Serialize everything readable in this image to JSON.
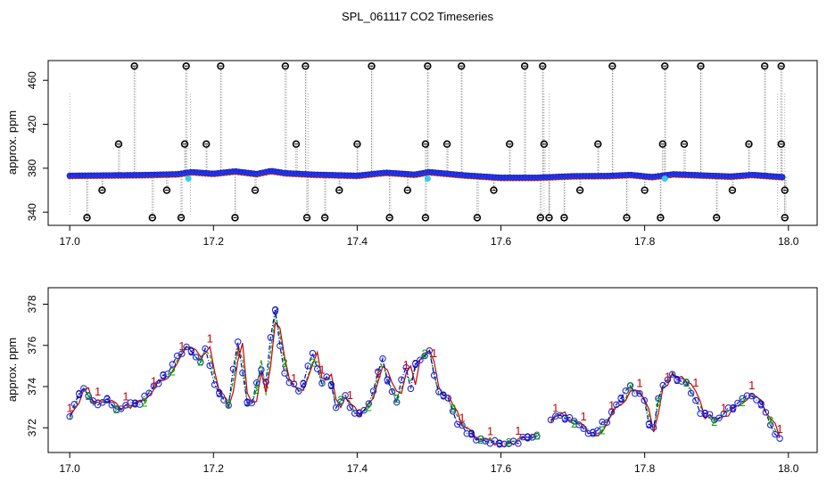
{
  "title": "SPL_061117  CO2 Timeseries",
  "chart_data": [
    {
      "type": "scatter",
      "ylabel": "approx. ppm",
      "xlabel": "",
      "xlim": [
        16.97,
        18.04
      ],
      "ylim": [
        328,
        478
      ],
      "xticks": [
        "17.0",
        "17.2",
        "17.4",
        "17.6",
        "17.8",
        "18.0"
      ],
      "yticks": [
        "340",
        "380",
        "420",
        "460"
      ],
      "baseline_points": [
        [
          17.0,
          373.2
        ],
        [
          17.05,
          373.5
        ],
        [
          17.1,
          373.8
        ],
        [
          17.15,
          374.6
        ],
        [
          17.17,
          376.5
        ],
        [
          17.2,
          375.0
        ],
        [
          17.23,
          377.2
        ],
        [
          17.26,
          374.8
        ],
        [
          17.28,
          377.5
        ],
        [
          17.3,
          375.5
        ],
        [
          17.34,
          374.2
        ],
        [
          17.4,
          373.2
        ],
        [
          17.44,
          376.0
        ],
        [
          17.48,
          374.2
        ],
        [
          17.5,
          376.5
        ],
        [
          17.55,
          373.5
        ],
        [
          17.6,
          371.4
        ],
        [
          17.65,
          371.4
        ],
        [
          17.7,
          372.8
        ],
        [
          17.75,
          373.0
        ],
        [
          17.78,
          374.0
        ],
        [
          17.81,
          372.0
        ],
        [
          17.84,
          374.5
        ],
        [
          17.88,
          373.5
        ],
        [
          17.92,
          372.5
        ],
        [
          17.95,
          374.0
        ],
        [
          17.99,
          372.0
        ]
      ],
      "outliers": [
        [
          17.024,
          335
        ],
        [
          17.045,
          360
        ],
        [
          17.068,
          402
        ],
        [
          17.09,
          473
        ],
        [
          17.115,
          335
        ],
        [
          17.135,
          360
        ],
        [
          17.155,
          335
        ],
        [
          17.16,
          402
        ],
        [
          17.162,
          473
        ],
        [
          17.19,
          402
        ],
        [
          17.21,
          473
        ],
        [
          17.23,
          335
        ],
        [
          17.258,
          360
        ],
        [
          17.3,
          473
        ],
        [
          17.315,
          402
        ],
        [
          17.328,
          473
        ],
        [
          17.33,
          335
        ],
        [
          17.355,
          335
        ],
        [
          17.375,
          360
        ],
        [
          17.4,
          402
        ],
        [
          17.42,
          473
        ],
        [
          17.445,
          335
        ],
        [
          17.47,
          360
        ],
        [
          17.495,
          335
        ],
        [
          17.495,
          402
        ],
        [
          17.498,
          473
        ],
        [
          17.525,
          402
        ],
        [
          17.545,
          473
        ],
        [
          17.567,
          335
        ],
        [
          17.59,
          360
        ],
        [
          17.612,
          402
        ],
        [
          17.633,
          473
        ],
        [
          17.655,
          335
        ],
        [
          17.658,
          473
        ],
        [
          17.66,
          402
        ],
        [
          17.667,
          335
        ],
        [
          17.688,
          335
        ],
        [
          17.71,
          360
        ],
        [
          17.735,
          402
        ],
        [
          17.755,
          473
        ],
        [
          17.775,
          335
        ],
        [
          17.8,
          360
        ],
        [
          17.822,
          335
        ],
        [
          17.825,
          402
        ],
        [
          17.828,
          473
        ],
        [
          17.855,
          402
        ],
        [
          17.878,
          473
        ],
        [
          17.9,
          335
        ],
        [
          17.922,
          360
        ],
        [
          17.945,
          402
        ],
        [
          17.967,
          473
        ],
        [
          17.99,
          473
        ],
        [
          17.99,
          402
        ],
        [
          17.995,
          335
        ],
        [
          17.995,
          360
        ]
      ],
      "cyan_points": [
        [
          17.165,
          370.5
        ],
        [
          17.498,
          370.5
        ],
        [
          17.828,
          370.5
        ]
      ]
    },
    {
      "type": "line",
      "ylabel": "approx. ppm",
      "xlabel": "",
      "xlim": [
        16.97,
        18.04
      ],
      "ylim": [
        370.8,
        378.8
      ],
      "xticks": [
        "17.0",
        "17.2",
        "17.4",
        "17.6",
        "17.8",
        "18.0"
      ],
      "yticks": [
        "372",
        "374",
        "376",
        "378"
      ],
      "series": [
        {
          "name": "1",
          "color": "#cc0000"
        },
        {
          "name": "2",
          "color": "#00aa00"
        },
        {
          "name": "3",
          "color": "#0000cc"
        }
      ],
      "keypoints": [
        [
          17.0,
          372.5
        ],
        [
          17.01,
          373.4
        ],
        [
          17.02,
          374.0
        ],
        [
          17.03,
          373.2
        ],
        [
          17.05,
          373.3
        ],
        [
          17.07,
          372.9
        ],
        [
          17.1,
          373.3
        ],
        [
          17.12,
          374.2
        ],
        [
          17.14,
          374.8
        ],
        [
          17.16,
          376.0
        ],
        [
          17.17,
          375.7
        ],
        [
          17.18,
          375.2
        ],
        [
          17.19,
          376.0
        ],
        [
          17.2,
          374.2
        ],
        [
          17.21,
          373.5
        ],
        [
          17.22,
          373.0
        ],
        [
          17.235,
          376.5
        ],
        [
          17.245,
          373.2
        ],
        [
          17.255,
          373.0
        ],
        [
          17.265,
          375.5
        ],
        [
          17.27,
          373.2
        ],
        [
          17.285,
          378.0
        ],
        [
          17.29,
          376.5
        ],
        [
          17.3,
          374.5
        ],
        [
          17.32,
          373.6
        ],
        [
          17.34,
          375.8
        ],
        [
          17.35,
          374.0
        ],
        [
          17.36,
          374.7
        ],
        [
          17.37,
          372.8
        ],
        [
          17.38,
          373.6
        ],
        [
          17.4,
          372.5
        ],
        [
          17.42,
          373.5
        ],
        [
          17.435,
          375.5
        ],
        [
          17.44,
          374.3
        ],
        [
          17.455,
          373.4
        ],
        [
          17.47,
          375.2
        ],
        [
          17.475,
          373.6
        ],
        [
          17.48,
          375.0
        ],
        [
          17.5,
          375.8
        ],
        [
          17.51,
          373.8
        ],
        [
          17.53,
          373.2
        ],
        [
          17.54,
          372.2
        ],
        [
          17.56,
          371.6
        ],
        [
          17.6,
          371.2
        ],
        [
          17.65,
          371.6
        ],
        [
          17.68,
          372.8
        ],
        [
          17.7,
          372.2
        ],
        [
          17.73,
          371.6
        ],
        [
          17.76,
          373.0
        ],
        [
          17.78,
          374.0
        ],
        [
          17.8,
          373.4
        ],
        [
          17.81,
          371.6
        ],
        [
          17.82,
          373.8
        ],
        [
          17.835,
          374.6
        ],
        [
          17.86,
          374.2
        ],
        [
          17.88,
          372.6
        ],
        [
          17.9,
          372.4
        ],
        [
          17.93,
          373.2
        ],
        [
          17.95,
          373.6
        ],
        [
          17.97,
          372.6
        ],
        [
          17.985,
          371.6
        ]
      ],
      "gaps": [
        [
          17.655,
          17.665
        ]
      ]
    }
  ]
}
